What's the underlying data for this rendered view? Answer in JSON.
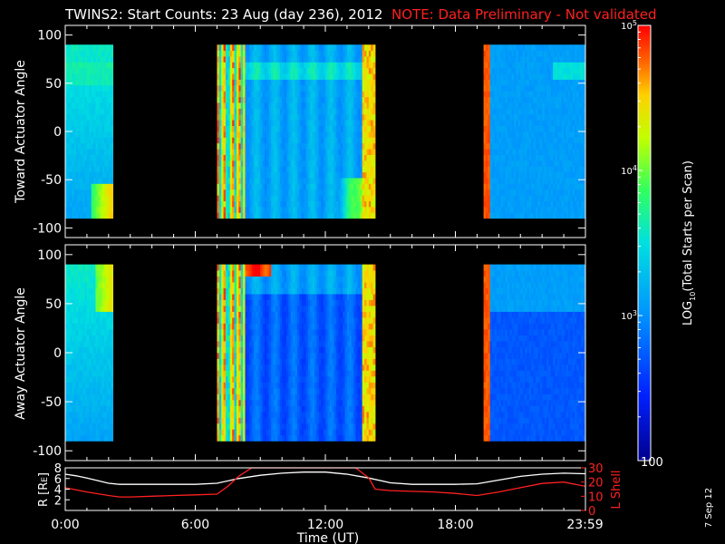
{
  "header": {
    "title": "TWINS2: Start Counts: 23 Aug (day 236), 2012",
    "note": "NOTE: Data Preliminary - Not validated",
    "note_color": "#ff2020"
  },
  "side_stamp": "7 Sep 12",
  "chart_data": [
    {
      "type": "heatmap",
      "panel": "toward",
      "ylabel": "Toward Actuator Angle",
      "ylim": [
        -110,
        110
      ],
      "yticks": [
        100,
        50,
        0,
        -50,
        -100
      ],
      "angle_range": [
        -90,
        90
      ],
      "xlim": [
        0,
        24
      ],
      "data_intervals_ut": [
        [
          0.0,
          2.2
        ],
        [
          7.0,
          14.3
        ],
        [
          19.3,
          24.0
        ]
      ],
      "colorscale_log10_range": [
        2,
        5
      ]
    },
    {
      "type": "heatmap",
      "panel": "away",
      "ylabel": "Away Actuator Angle",
      "ylim": [
        -110,
        110
      ],
      "yticks": [
        100,
        50,
        0,
        -50,
        -100
      ],
      "angle_range": [
        -90,
        90
      ],
      "xlim": [
        0,
        24
      ],
      "data_intervals_ut": [
        [
          0.0,
          2.2
        ],
        [
          7.0,
          14.3
        ],
        [
          19.3,
          24.0
        ]
      ],
      "colorscale_log10_range": [
        2,
        5
      ]
    },
    {
      "type": "line",
      "panel": "orbit",
      "xlabel": "Time (UT)",
      "xlim": [
        0,
        24
      ],
      "xticks": [
        "0:00",
        "6:00",
        "12:00",
        "18:00",
        "23:59"
      ],
      "ylabel_left": "R [RE]",
      "ylabel_right": "L Shell",
      "yticks_left": [
        8,
        6,
        4,
        2
      ],
      "yticks_right": [
        30,
        20,
        10,
        0
      ],
      "ylim_left": [
        0,
        8
      ],
      "ylim_right": [
        0,
        30
      ],
      "series": [
        {
          "name": "R",
          "color": "#ffffff",
          "axis": "left",
          "x": [
            0,
            0.5,
            1,
            1.5,
            2,
            2.5,
            3,
            4,
            5,
            6,
            7,
            8,
            9,
            10,
            11,
            12,
            13,
            14,
            15,
            16,
            17,
            18,
            19,
            20,
            21,
            22,
            23,
            24
          ],
          "y": [
            6.8,
            6.5,
            6.1,
            5.6,
            5.1,
            4.9,
            4.9,
            4.9,
            4.9,
            4.9,
            5.1,
            6.0,
            6.6,
            7.0,
            7.2,
            7.2,
            6.8,
            6.1,
            5.2,
            4.9,
            4.9,
            4.9,
            5.0,
            5.7,
            6.4,
            6.8,
            7.0,
            6.9
          ]
        },
        {
          "name": "L",
          "color": "#ff2020",
          "axis": "right",
          "x": [
            0,
            1,
            2,
            2.5,
            3,
            4,
            5,
            6,
            7,
            7.5,
            8,
            8.6,
            13.4,
            14,
            14.3,
            15,
            16,
            17,
            18,
            19,
            20,
            21,
            22,
            23,
            24
          ],
          "y": [
            16,
            13,
            10.5,
            9.5,
            9.5,
            10,
            10.5,
            11,
            11.5,
            17,
            24,
            30,
            30,
            23,
            15,
            14,
            13.5,
            13,
            12,
            10.5,
            13,
            16,
            19,
            20,
            17
          ]
        }
      ]
    },
    {
      "type": "heatmap",
      "panel": "colorbar",
      "ylabel": "LOG10(Total Starts per Scan)",
      "ylabel_prefix": "LOG",
      "ylabel_sub": "10",
      "ylabel_suffix": "(Total Starts per Scan)",
      "ticks": [
        {
          "base": "10",
          "exp": "5"
        },
        {
          "base": "10",
          "exp": "4"
        },
        {
          "base": "10",
          "exp": "3"
        }
      ],
      "tick_bottom": "100",
      "range_log10": [
        2,
        5
      ]
    }
  ],
  "orbit_axis_labels": {
    "left_main": "R [R",
    "left_sub": "E",
    "left_close": "]",
    "right": "L Shell"
  }
}
